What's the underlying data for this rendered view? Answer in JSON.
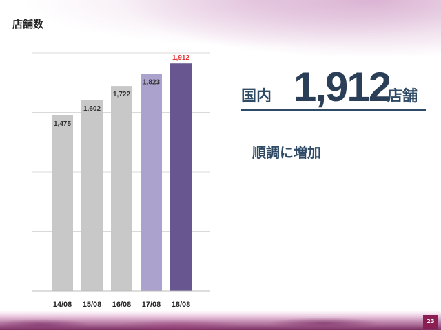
{
  "page": {
    "title": "店舗数",
    "page_number": "23"
  },
  "highlight": {
    "prefix": "国内",
    "value": "1,912",
    "suffix": "店舗",
    "subtitle": "順調に増加"
  },
  "colors": {
    "bar_default": "#c8c8c8",
    "bar_prev": "#aba2cd",
    "bar_latest": "#67568f",
    "latest_label": "#e53535",
    "label": "#333333"
  },
  "chart_data": {
    "type": "bar",
    "categories": [
      "14/08",
      "15/08",
      "16/08",
      "17/08",
      "18/08"
    ],
    "values": [
      1475,
      1602,
      1722,
      1823,
      1912
    ],
    "value_labels": [
      "1,475",
      "1,602",
      "1,722",
      "1,823",
      "1,912"
    ],
    "ylim": [
      0,
      2000
    ],
    "grid": true
  }
}
